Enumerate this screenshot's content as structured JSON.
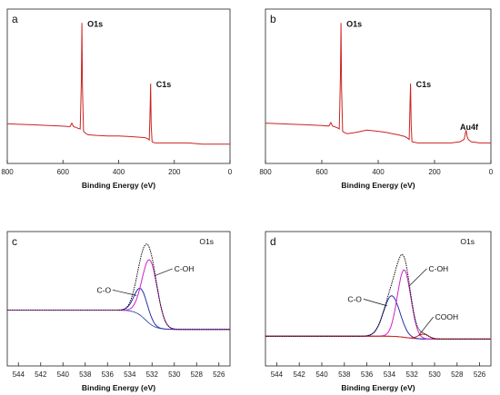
{
  "chart_data": [
    {
      "panel": "a",
      "type": "line",
      "xlabel": "Binding Energy (eV)",
      "x_reversed": true,
      "xlim": [
        800,
        0
      ],
      "xticks": [
        800,
        600,
        400,
        200,
        0
      ],
      "series": [
        {
          "color": "#cc2222",
          "x": [
            800,
            760,
            700,
            650,
            610,
            575,
            568,
            562,
            555,
            545,
            538,
            534,
            532,
            530,
            526,
            520,
            510,
            480,
            440,
            400,
            360,
            330,
            305,
            295,
            290,
            287,
            285,
            283,
            280,
            270,
            240,
            200,
            150,
            100,
            50,
            0
          ],
          "y": [
            0.135,
            0.13,
            0.125,
            0.12,
            0.115,
            0.11,
            0.14,
            0.11,
            0.105,
            0.095,
            0.09,
            0.5,
            1.0,
            0.45,
            0.07,
            0.055,
            0.04,
            0.035,
            0.03,
            0.03,
            0.025,
            0.02,
            0.015,
            0.005,
            -0.005,
            0.25,
            0.48,
            0.12,
            -0.02,
            -0.03,
            -0.03,
            -0.03,
            -0.03,
            -0.04,
            -0.04,
            -0.04
          ]
        }
      ],
      "annotations": [
        {
          "text": "O1s",
          "x": 532
        },
        {
          "text": "C1s",
          "x": 285
        }
      ]
    },
    {
      "panel": "b",
      "type": "line",
      "xlabel": "Binding Energy (eV)",
      "x_reversed": true,
      "xlim": [
        800,
        0
      ],
      "xticks": [
        800,
        600,
        400,
        200,
        0
      ],
      "series": [
        {
          "color": "#cc2222",
          "x": [
            800,
            750,
            700,
            650,
            600,
            575,
            568,
            562,
            555,
            545,
            538,
            534,
            532,
            530,
            526,
            520,
            510,
            480,
            440,
            400,
            370,
            350,
            330,
            305,
            295,
            290,
            287,
            285,
            283,
            280,
            260,
            220,
            180,
            140,
            110,
            95,
            88,
            84,
            80,
            70,
            40,
            0
          ],
          "y": [
            0.14,
            0.135,
            0.13,
            0.125,
            0.12,
            0.115,
            0.145,
            0.115,
            0.11,
            0.1,
            0.09,
            0.55,
            1.0,
            0.45,
            0.07,
            0.06,
            0.05,
            0.06,
            0.08,
            0.07,
            0.06,
            0.05,
            0.04,
            0.025,
            0.01,
            0.0,
            0.3,
            0.48,
            0.12,
            -0.02,
            -0.03,
            -0.03,
            -0.03,
            -0.03,
            -0.02,
            0.0,
            0.08,
            0.02,
            0.0,
            -0.02,
            -0.03,
            -0.03
          ]
        }
      ],
      "annotations": [
        {
          "text": "O1s",
          "x": 532
        },
        {
          "text": "C1s",
          "x": 285
        },
        {
          "text": "Au4f",
          "x": 84
        }
      ]
    },
    {
      "panel": "c",
      "type": "line",
      "title": "O1s",
      "xlabel": "Binding Energy (eV)",
      "x_reversed": true,
      "xlim": [
        545,
        525
      ],
      "xticks": [
        544,
        542,
        540,
        538,
        536,
        534,
        532,
        530,
        528,
        526
      ],
      "baseline": [
        0.1,
        0.3
      ],
      "peaks": [
        {
          "label": "C-O",
          "center": 533.0,
          "height": 0.28,
          "fwhm": 1.4,
          "color": "#2233aa"
        },
        {
          "label": "C-OH",
          "center": 532.2,
          "height": 0.66,
          "fwhm": 1.6,
          "color": "#cc22cc"
        }
      ],
      "envelope_color": "#111111"
    },
    {
      "panel": "d",
      "type": "line",
      "title": "O1s",
      "xlabel": "Binding Energy (eV)",
      "x_reversed": true,
      "xlim": [
        545,
        525
      ],
      "xticks": [
        544,
        542,
        540,
        538,
        536,
        534,
        532,
        530,
        528,
        526
      ],
      "baseline": [
        0.0,
        0.03
      ],
      "peaks": [
        {
          "label": "C-O",
          "center": 533.8,
          "height": 0.42,
          "fwhm": 1.7,
          "color": "#2233aa"
        },
        {
          "label": "C-OH",
          "center": 532.7,
          "height": 0.7,
          "fwhm": 1.4,
          "color": "#cc22cc"
        },
        {
          "label": "COOH",
          "center": 531.0,
          "height": 0.05,
          "fwhm": 1.1,
          "color": "#cc2222"
        }
      ],
      "bg_color": "#cc2222",
      "envelope_color": "#111111"
    }
  ]
}
